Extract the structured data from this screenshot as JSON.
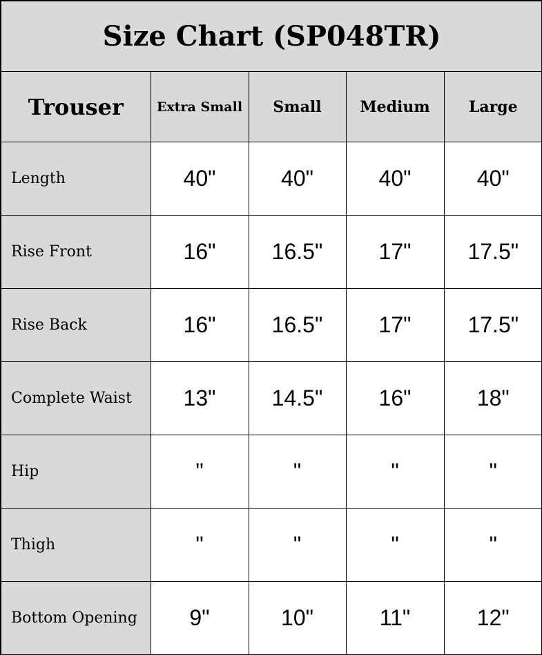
{
  "title": "Size Chart (SP048TR)",
  "header": {
    "corner": "Trouser",
    "sizes": [
      "Extra Small",
      "Small",
      "Medium",
      "Large"
    ]
  },
  "rows": [
    {
      "label": "Length",
      "values": [
        "40\"",
        "40\"",
        "40\"",
        "40\""
      ]
    },
    {
      "label": "Rise Front",
      "values": [
        "16\"",
        "16.5\"",
        "17\"",
        "17.5\""
      ]
    },
    {
      "label": "Rise Back",
      "values": [
        "16\"",
        "16.5\"",
        "17\"",
        "17.5\""
      ]
    },
    {
      "label": "Complete Waist",
      "values": [
        "13\"",
        "14.5\"",
        "16\"",
        "18\""
      ]
    },
    {
      "label": "Hip",
      "values": [
        "\"",
        "\"",
        "\"",
        "\""
      ]
    },
    {
      "label": "Thigh",
      "values": [
        "\"",
        "\"",
        "\"",
        "\""
      ]
    },
    {
      "label": "Bottom Opening",
      "values": [
        "9\"",
        "10\"",
        "11\"",
        "12\""
      ]
    }
  ],
  "colors": {
    "header_bg": "#d9d9d9",
    "border": "#000000",
    "cell_bg": "#ffffff"
  }
}
